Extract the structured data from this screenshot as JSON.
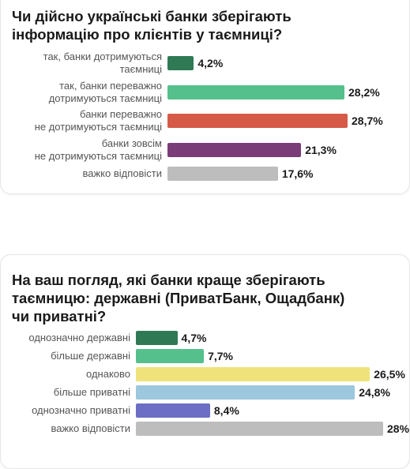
{
  "chart_data": [
    {
      "type": "bar",
      "title": "Чи дійсно українські банки зберігають\nінформацію про клієнтів у таємниці?",
      "categories": [
        "так, банки дотримуються\nтаємниці",
        "так, банки переважно\nдотримуються таємниці",
        "банки переважно\nне дотримуються таємниці",
        "банки зовсім\nне дотримуються таємниці",
        "важко відповісти"
      ],
      "values": [
        4.2,
        28.2,
        28.7,
        21.3,
        17.6
      ],
      "value_labels": [
        "4,2%",
        "28,2%",
        "28,7%",
        "21,3%",
        "17,6%"
      ],
      "colors": [
        "#2f7a55",
        "#55c08c",
        "#d65a48",
        "#7a3d78",
        "#bdbdbd"
      ]
    },
    {
      "type": "bar",
      "title": "На ваш погляд, які банки краще зберігають\nтаємницю: державні (ПриватБанк, Ощадбанк)\nчи приватні?",
      "categories": [
        "однозначно державні",
        "більше державні",
        "однаково",
        "більше приватні",
        "однозначно приватні",
        "важко відповісти"
      ],
      "values": [
        4.7,
        7.7,
        26.5,
        24.8,
        8.4,
        28
      ],
      "value_labels": [
        "4,7%",
        "7,7%",
        "26,5%",
        "24,8%",
        "8,4%",
        "28%"
      ],
      "colors": [
        "#2f7a55",
        "#55c08c",
        "#efe27a",
        "#9cc7dc",
        "#6b6ec4",
        "#bdbdbd"
      ]
    }
  ]
}
